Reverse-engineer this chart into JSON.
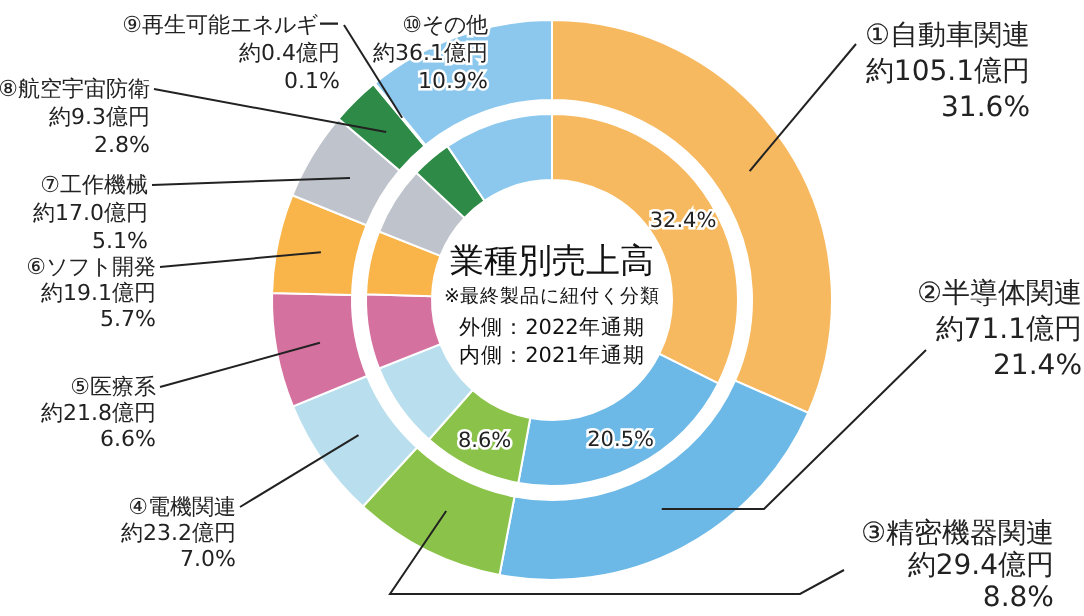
{
  "chart_data": {
    "type": "donut",
    "title": "業種別売上高",
    "subtitle": "※最終製品に紐付く分類",
    "annotations": [
      "外側：2022年通期",
      "内側：2021年通期"
    ],
    "categories": [
      "①自動車関連",
      "②半導体関連",
      "③精密機器関連",
      "④電機関連",
      "⑤医療系",
      "⑥ソフト開発",
      "⑦工作機械",
      "⑧航空宇宙防衛",
      "⑨再生可能エネルギー",
      "⑩その他"
    ],
    "colors": [
      "#f7b960",
      "#6cb8e6",
      "#8bc34a",
      "#b9dfee",
      "#d4719f",
      "#f9b44a",
      "#bfc3cc",
      "#2e8b47",
      "#3a9a50",
      "#8cc8ee"
    ],
    "series": [
      {
        "values": [
          31.6,
          21.4,
          8.8,
          7.0,
          6.6,
          5.7,
          5.1,
          2.8,
          0.1,
          10.9
        ],
        "value_labels": [
          "約105.1億円\n31.6%",
          "約71.1億円\n21.4%",
          "約29.4億円\n8.8%",
          "約23.2億円\n7.0%",
          "約21.8億円\n6.6%",
          "約19.1億円\n5.7%",
          "約17.0億円\n5.1%",
          "約9.3億円\n2.8%",
          "約0.4億円\n0.1%",
          "約36.1億円\n10.9%"
        ]
      },
      {
        "values": [
          32.4,
          20.5,
          8.6,
          7.5,
          6.5,
          5.5,
          6.0,
          3.5,
          null,
          9.5
        ],
        "value_labels": [
          "32.4%",
          "20.5%",
          "8.6%",
          null,
          null,
          null,
          null,
          null,
          null,
          null
        ]
      }
    ]
  }
}
